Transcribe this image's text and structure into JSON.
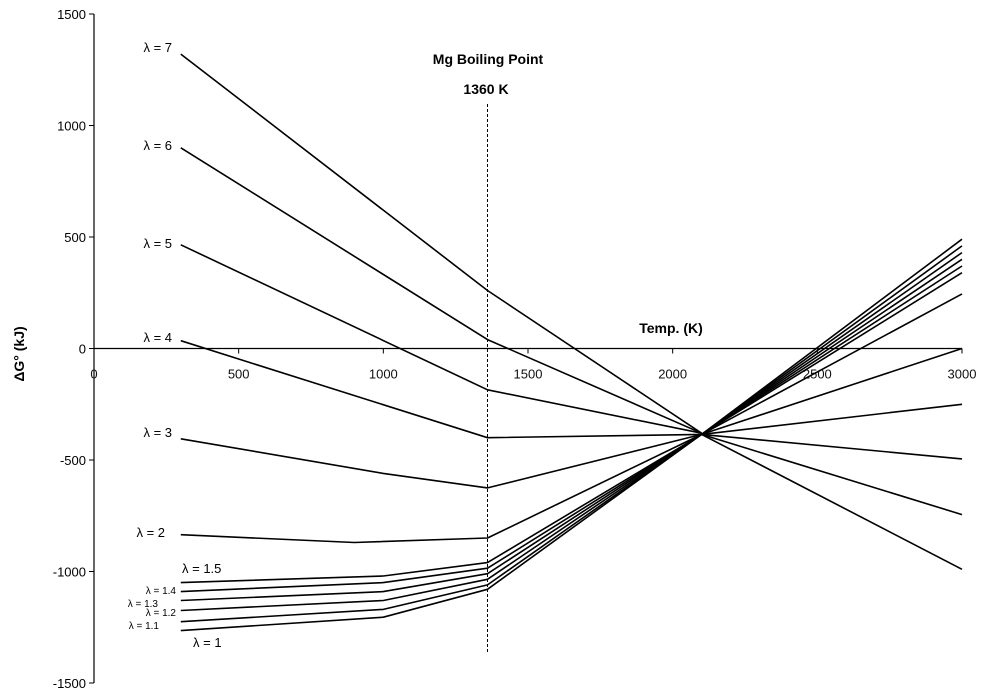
{
  "chart_data": {
    "type": "line",
    "xlabel": "Temp. (K)",
    "ylabel": "ΔG° (kJ)",
    "xlim": [
      0,
      3000
    ],
    "ylim": [
      -1500,
      1500
    ],
    "x_ticks": [
      0,
      500,
      1000,
      1500,
      2000,
      2500,
      3000
    ],
    "y_ticks": [
      -1500,
      -1000,
      -500,
      0,
      500,
      1000,
      1500
    ],
    "grid": false,
    "annotation": {
      "line1": "Mg Boiling Point",
      "line2": "1360 K",
      "x": 1360
    },
    "series": [
      {
        "name": "λ = 7",
        "x": [
          300,
          1360,
          2100
        ],
        "y": [
          1320,
          260,
          -380
        ]
      },
      {
        "name": "λ = 6",
        "x": [
          300,
          1360,
          2100
        ],
        "y": [
          900,
          40,
          -380
        ]
      },
      {
        "name": "λ = 5",
        "x": [
          300,
          1360,
          2100
        ],
        "y": [
          465,
          -185,
          -380
        ]
      },
      {
        "name": "λ = 4",
        "x": [
          300,
          1360,
          2100
        ],
        "y": [
          35,
          -400,
          -385
        ]
      },
      {
        "name": "λ = 3",
        "x": [
          300,
          1000,
          1360,
          2100
        ],
        "y": [
          -405,
          -560,
          -625,
          -385
        ]
      },
      {
        "name": "λ = 2",
        "x": [
          300,
          900,
          1360,
          2100
        ],
        "y": [
          -835,
          -870,
          -850,
          -385
        ]
      },
      {
        "name": "λ = 1.5",
        "x": [
          300,
          1000,
          1360,
          2100,
          3000
        ],
        "y": [
          -1050,
          -1020,
          -960,
          -385,
          490
        ]
      },
      {
        "name": "λ = 1.4",
        "x": [
          300,
          1000,
          1360,
          2100,
          3000
        ],
        "y": [
          -1090,
          -1050,
          -985,
          -385,
          460
        ]
      },
      {
        "name": "λ = 1.3",
        "x": [
          300,
          1000,
          1360,
          2100,
          3000
        ],
        "y": [
          -1130,
          -1090,
          -1010,
          -385,
          430
        ]
      },
      {
        "name": "λ = 1.2",
        "x": [
          300,
          1000,
          1360,
          2100,
          3000
        ],
        "y": [
          -1175,
          -1130,
          -1035,
          -385,
          400
        ]
      },
      {
        "name": "λ = 1.1",
        "x": [
          300,
          1000,
          1360,
          2100,
          3000
        ],
        "y": [
          -1225,
          -1170,
          -1060,
          -385,
          370
        ]
      },
      {
        "name": "λ = 1",
        "x": [
          300,
          1000,
          1360,
          2100,
          3000
        ],
        "y": [
          -1265,
          -1205,
          -1080,
          -385,
          340
        ]
      }
    ],
    "right_fan": [
      {
        "x": [
          2100,
          3000
        ],
        "y": [
          -385,
          245
        ]
      },
      {
        "x": [
          2100,
          3000
        ],
        "y": [
          -385,
          0
        ]
      },
      {
        "x": [
          2100,
          3000
        ],
        "y": [
          -385,
          -250
        ]
      },
      {
        "x": [
          2100,
          3000
        ],
        "y": [
          -385,
          -495
        ]
      },
      {
        "x": [
          2100,
          3000
        ],
        "y": [
          -385,
          -745
        ]
      },
      {
        "x": [
          2100,
          3000
        ],
        "y": [
          -385,
          -990
        ]
      }
    ]
  }
}
